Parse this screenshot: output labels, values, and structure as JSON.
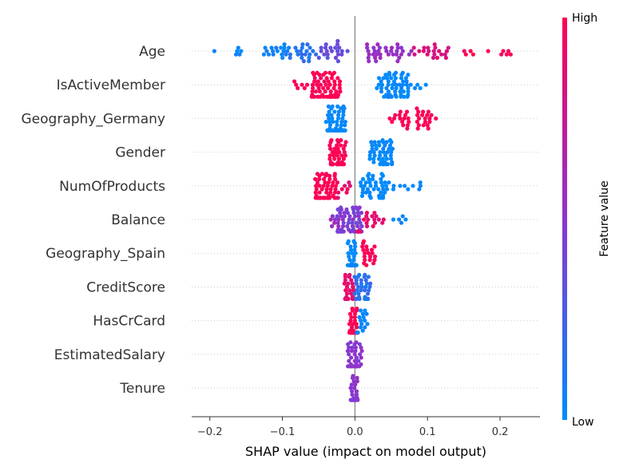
{
  "chart_data": {
    "type": "scatter",
    "subtype": "shap-beeswarm",
    "xlabel": "SHAP value (impact on model output)",
    "xlim": [
      -0.225,
      0.255
    ],
    "x_ticks": [
      -0.2,
      -0.1,
      0.0,
      0.1,
      0.2
    ],
    "x_tick_labels": [
      "−0.2",
      "−0.1",
      "0.0",
      "0.1",
      "0.2"
    ],
    "features": [
      {
        "name": "Age",
        "groups": [
          {
            "min": -0.205,
            "max": -0.14,
            "n": 6,
            "value": 0.02
          },
          {
            "min": -0.13,
            "max": -0.09,
            "n": 18,
            "value": 0.05
          },
          {
            "min": -0.09,
            "max": -0.05,
            "n": 20,
            "value": 0.15
          },
          {
            "min": -0.05,
            "max": -0.01,
            "n": 22,
            "value": 0.35
          },
          {
            "min": 0.01,
            "max": 0.08,
            "n": 34,
            "value": 0.55
          },
          {
            "min": 0.08,
            "max": 0.13,
            "n": 20,
            "value": 0.82
          },
          {
            "min": 0.13,
            "max": 0.232,
            "n": 10,
            "value": 0.97
          }
        ]
      },
      {
        "name": "IsActiveMember",
        "groups": [
          {
            "min": -0.085,
            "max": -0.06,
            "n": 6,
            "value": 1.0
          },
          {
            "min": -0.06,
            "max": -0.02,
            "n": 64,
            "value": 1.0
          },
          {
            "min": 0.03,
            "max": 0.075,
            "n": 56,
            "value": 0.0
          },
          {
            "min": 0.075,
            "max": 0.1,
            "n": 5,
            "value": 0.0
          }
        ]
      },
      {
        "name": "Geography_Germany",
        "groups": [
          {
            "min": -0.04,
            "max": -0.013,
            "n": 78,
            "value": 0.0
          },
          {
            "min": 0.048,
            "max": 0.075,
            "n": 16,
            "value": 1.0
          },
          {
            "min": 0.085,
            "max": 0.115,
            "n": 20,
            "value": 1.0
          }
        ]
      },
      {
        "name": "Gender",
        "groups": [
          {
            "min": -0.035,
            "max": -0.012,
            "n": 44,
            "value": 1.0
          },
          {
            "min": 0.02,
            "max": 0.052,
            "n": 46,
            "value": 0.0
          }
        ]
      },
      {
        "name": "NumOfProducts",
        "groups": [
          {
            "min": -0.055,
            "max": -0.025,
            "n": 58,
            "value": 1.0
          },
          {
            "min": -0.025,
            "max": 0.0,
            "n": 10,
            "value": 0.9
          },
          {
            "min": 0.005,
            "max": 0.04,
            "n": 38,
            "value": 0.0
          },
          {
            "min": 0.04,
            "max": 0.093,
            "n": 14,
            "value": 0.0
          }
        ]
      },
      {
        "name": "Balance",
        "groups": [
          {
            "min": -0.035,
            "max": -0.012,
            "n": 12,
            "value": 0.55
          },
          {
            "min": -0.025,
            "max": 0.01,
            "n": 60,
            "value": 0.45
          },
          {
            "min": 0.0,
            "max": 0.04,
            "n": 22,
            "value": 0.9
          },
          {
            "min": 0.04,
            "max": 0.07,
            "n": 5,
            "value": 0.05
          }
        ]
      },
      {
        "name": "Geography_Spain",
        "groups": [
          {
            "min": -0.01,
            "max": 0.002,
            "n": 58,
            "value": 0.0
          },
          {
            "min": 0.008,
            "max": 0.028,
            "n": 20,
            "value": 1.0
          }
        ]
      },
      {
        "name": "CreditScore",
        "groups": [
          {
            "min": -0.015,
            "max": -0.002,
            "n": 26,
            "value": 0.9
          },
          {
            "min": -0.002,
            "max": 0.022,
            "n": 36,
            "value": 0.15
          }
        ]
      },
      {
        "name": "HasCrCard",
        "groups": [
          {
            "min": -0.008,
            "max": 0.003,
            "n": 36,
            "value": 1.0
          },
          {
            "min": 0.002,
            "max": 0.018,
            "n": 16,
            "value": 0.0
          }
        ]
      },
      {
        "name": "EstimatedSalary",
        "groups": [
          {
            "min": -0.01,
            "max": 0.01,
            "n": 40,
            "value": 0.5
          }
        ]
      },
      {
        "name": "Tenure",
        "groups": [
          {
            "min": -0.006,
            "max": 0.004,
            "n": 30,
            "value": 0.5
          }
        ]
      }
    ],
    "colorbar": {
      "label": "Feature value",
      "high": "High",
      "low": "Low"
    },
    "colors": {
      "low": "#008bfb",
      "mid": "#8a36d0",
      "high": "#ff0052",
      "zero_line": "#999999",
      "row_grid": "#cccccc",
      "axis": "#333333"
    }
  }
}
